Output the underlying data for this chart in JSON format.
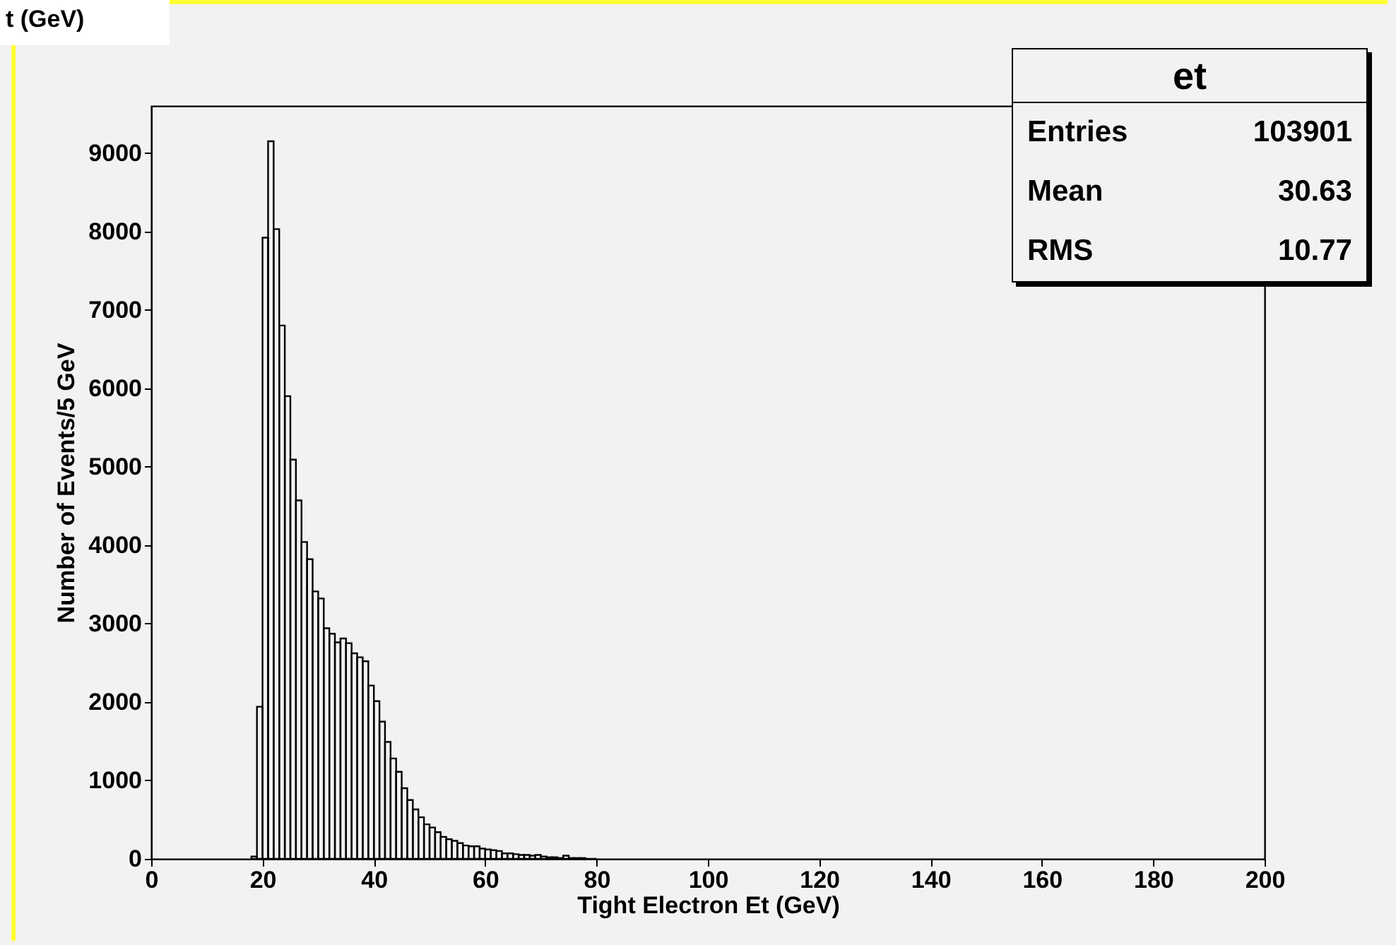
{
  "chart_data": {
    "type": "histogram",
    "title": "t (GeV)",
    "xlabel": "Tight Electron Et (GeV)",
    "ylabel": "Number of Events/5 GeV",
    "bins": [
      18,
      19,
      20,
      21,
      22,
      23,
      24,
      25,
      26,
      27,
      28,
      29,
      30,
      31,
      32,
      33,
      34,
      35,
      36,
      37,
      38,
      39,
      40,
      41,
      42,
      43,
      44,
      45,
      46,
      47,
      48,
      49,
      50,
      51,
      52,
      53,
      54,
      55,
      56,
      57,
      58,
      59,
      60,
      61,
      62,
      63,
      64,
      65,
      66,
      67,
      68,
      69,
      70,
      71,
      72,
      73,
      74,
      75,
      76,
      77,
      78,
      79,
      80
    ],
    "values": [
      30,
      1940,
      7920,
      9150,
      8030,
      6800,
      5900,
      5090,
      4570,
      4040,
      3820,
      3410,
      3320,
      2940,
      2870,
      2760,
      2810,
      2750,
      2620,
      2570,
      2520,
      2210,
      2010,
      1750,
      1490,
      1280,
      1110,
      900,
      750,
      630,
      530,
      440,
      400,
      340,
      280,
      250,
      230,
      200,
      170,
      160,
      160,
      130,
      120,
      110,
      100,
      70,
      70,
      60,
      50,
      50,
      40,
      50,
      30,
      20,
      20,
      10,
      40,
      10,
      10,
      10,
      0,
      0
    ],
    "color": "#000000",
    "xlim": [
      0,
      200
    ],
    "xticks": [
      0,
      20,
      40,
      60,
      80,
      100,
      120,
      140,
      160,
      180,
      200
    ],
    "ylim": [
      0,
      9600
    ],
    "yticks": [
      0,
      1000,
      2000,
      3000,
      4000,
      5000,
      6000,
      7000,
      8000,
      9000
    ],
    "grid": false,
    "annotations": [
      "et",
      "Entries 103901",
      "Mean 30.63",
      "RMS 10.77"
    ]
  }
}
